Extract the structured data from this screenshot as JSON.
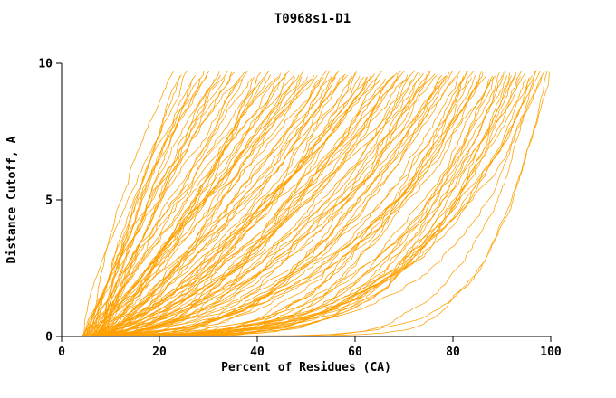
{
  "chart_data": {
    "type": "line",
    "title": "T0968s1-D1",
    "xlabel": "Percent of Residues (CA)",
    "ylabel": "Distance Cutoff, A",
    "xlim": [
      0,
      100
    ],
    "ylim": [
      0,
      10
    ],
    "x_ticks": [
      0,
      20,
      40,
      60,
      80,
      100
    ],
    "y_ticks": [
      0,
      5,
      10
    ],
    "grid": false,
    "legend": "none",
    "series_color": "#FFA000",
    "axis_color": "#000000",
    "background": "#FFFFFF",
    "ensemble": {
      "n_curves": 130,
      "seed": 42,
      "x_start_range": [
        4,
        9
      ],
      "x_end_range": [
        22,
        100
      ],
      "y_max_range": [
        9.4,
        9.75
      ],
      "shape_exponent_range": [
        0.16,
        1.35
      ]
    }
  }
}
